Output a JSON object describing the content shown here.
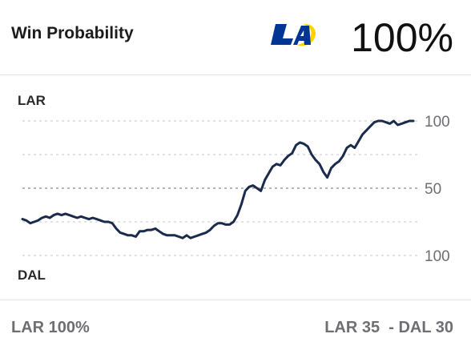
{
  "header": {
    "title": "Win Probability",
    "team_logo_icon": "rams-logo-icon",
    "percentage": "100%"
  },
  "chart_data": {
    "type": "line",
    "title": "",
    "top_label": "LAR",
    "bottom_label": "DAL",
    "y_tick_labels": [
      "100",
      "50",
      "100"
    ],
    "gridlines": "dashed",
    "line_color": "#1b2b4b",
    "description_axis": "LAR win probability, 100 at top, 0 at bottom",
    "x": [
      0,
      1,
      2,
      3,
      4,
      5,
      6,
      7,
      8,
      9,
      10,
      11,
      12,
      13,
      14,
      15,
      16,
      17,
      18,
      19,
      20,
      21,
      22,
      23,
      24,
      25,
      26,
      27,
      28,
      29,
      30,
      31,
      32,
      33,
      34,
      35,
      36,
      37,
      38,
      39,
      40,
      41,
      42,
      43,
      44,
      45,
      46,
      47,
      48,
      49,
      50,
      51,
      52,
      53,
      54,
      55,
      56,
      57,
      58,
      59,
      60,
      61,
      62,
      63,
      64,
      65,
      66,
      67,
      68,
      69,
      70,
      71,
      72,
      73,
      74,
      75,
      76,
      77,
      78,
      79,
      80,
      81,
      82,
      83,
      84,
      85,
      86,
      87,
      88,
      89,
      90,
      91,
      92,
      93,
      94,
      95,
      96,
      97,
      98,
      99,
      100
    ],
    "series": [
      {
        "values": [
          27,
          26,
          24,
          25,
          26,
          28,
          29,
          28,
          30,
          31,
          30,
          31,
          30,
          29,
          28,
          29,
          28,
          27,
          28,
          27,
          26,
          25,
          25,
          24,
          20,
          17,
          16,
          15,
          15,
          14,
          18,
          18,
          19,
          19,
          20,
          18,
          16,
          15,
          15,
          15,
          14,
          13,
          15,
          13,
          14,
          15,
          16,
          17,
          19,
          22,
          24,
          24,
          23,
          23,
          25,
          30,
          38,
          48,
          51,
          52,
          50,
          48,
          56,
          61,
          66,
          68,
          67,
          71,
          74,
          76,
          82,
          84,
          83,
          81,
          75,
          71,
          68,
          62,
          58,
          65,
          68,
          70,
          74,
          80,
          82,
          80,
          85,
          90,
          93,
          96,
          99,
          100,
          100,
          99,
          98,
          100,
          97,
          98,
          99,
          100,
          100
        ]
      }
    ],
    "xlim": [
      0,
      100
    ],
    "ylim": [
      0,
      100
    ]
  },
  "footer": {
    "left": "LAR 100%",
    "right": "LAR 35  - DAL 30"
  },
  "colors": {
    "accent": "#1b2b4b",
    "rams_blue": "#003594",
    "rams_gold": "#ffd100",
    "text_secondary": "#6e6e73",
    "grid": "#a0a0a6"
  }
}
